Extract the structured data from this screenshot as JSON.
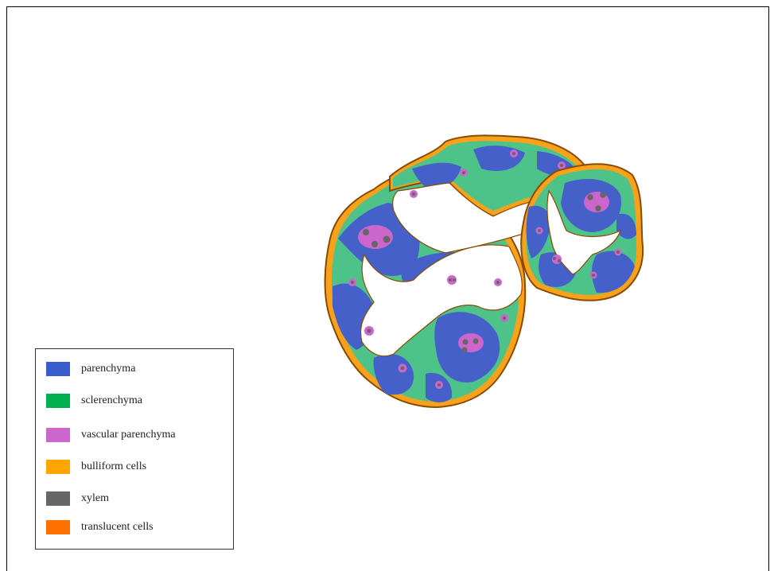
{
  "legend": {
    "items": [
      {
        "label": "parenchyma",
        "color": "#3a5ccc"
      },
      {
        "label": "sclerenchyma",
        "color": "#00b04f"
      },
      {
        "label": "vascular parenchyma",
        "color": "#cc66cc"
      },
      {
        "label": "bulliform cells",
        "color": "#ffa500"
      },
      {
        "label": "xylem",
        "color": "#666666"
      },
      {
        "label": "translucent cells",
        "color": "#ff7000"
      }
    ]
  },
  "colors": {
    "parenchyma": "#4561c9",
    "sclerenchyma": "#4dc38a",
    "vascular": "#cc66cc",
    "bulliform": "#f7a21b",
    "xylem": "#666666",
    "outline": "#8b4a00"
  }
}
